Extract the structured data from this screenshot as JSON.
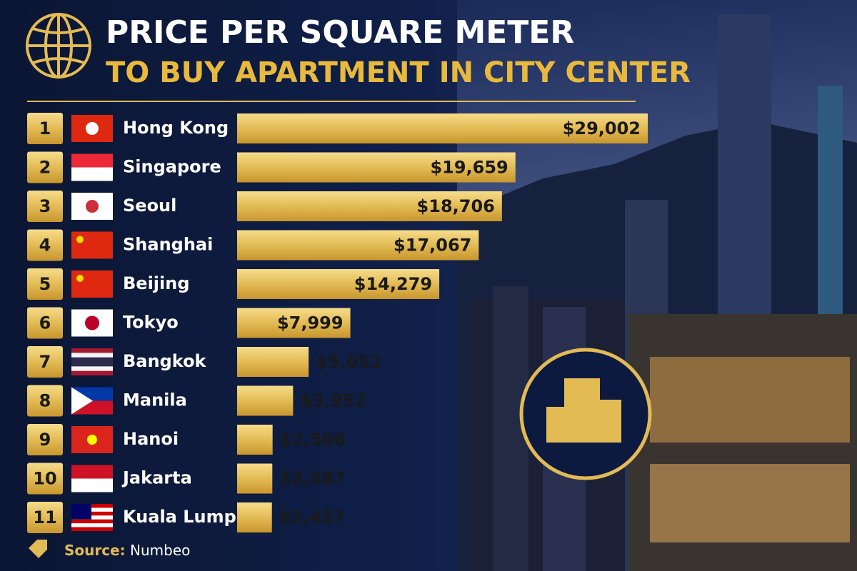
{
  "chart_data": {
    "type": "bar",
    "orientation": "horizontal",
    "title": "PRICE PER SQUARE METER",
    "subtitle": "TO BUY APARTMENT IN CITY CENTER",
    "ranks": [
      1,
      2,
      3,
      4,
      5,
      6,
      7,
      8,
      9,
      10,
      11
    ],
    "categories": [
      "Hong Kong",
      "Singapore",
      "Seoul",
      "Shanghai",
      "Beijing",
      "Tokyo",
      "Bangkok",
      "Manila",
      "Hanoi",
      "Jakarta",
      "Kuala Lumpur"
    ],
    "values": [
      29002,
      19659,
      18706,
      17067,
      14279,
      7999,
      5052,
      3952,
      2506,
      2487,
      2457
    ],
    "value_labels": [
      "$29,002",
      "$19,659",
      "$18,706",
      "$17,067",
      "$14,279",
      "$7,999",
      "$5,052",
      "$3,952",
      "$2,506",
      "$2,487",
      "$2,457"
    ],
    "color": "#e3bb55",
    "source_label": "Source:",
    "source": "Numbeo"
  }
}
